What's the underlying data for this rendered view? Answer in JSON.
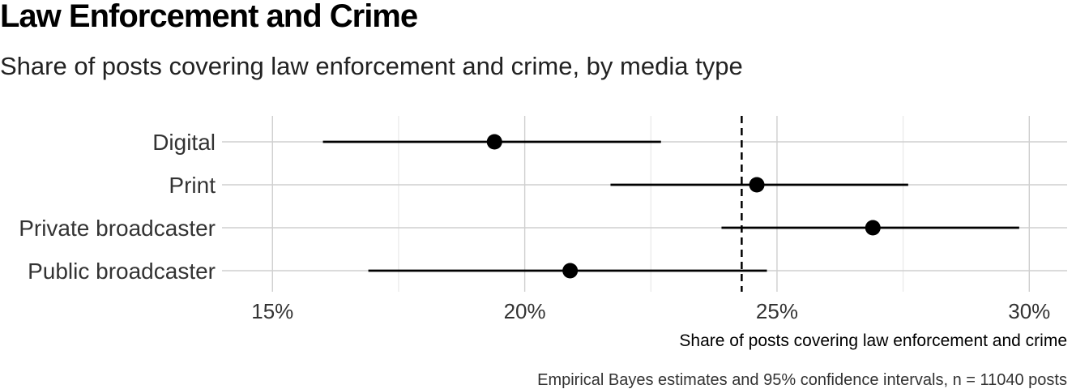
{
  "chart_data": {
    "type": "dot-and-interval",
    "title": "Law Enforcement and Crime",
    "subtitle": "Share of posts covering law enforcement and crime, by media type",
    "xlabel": "Share of posts covering law enforcement and crime",
    "ylabel": "",
    "caption": "Empirical Bayes estimates and 95% confidence intervals, n = 11040 posts",
    "xlim": [
      0.14,
      0.3075
    ],
    "xticks": [
      0.15,
      0.2,
      0.25,
      0.3
    ],
    "xtick_labels": [
      "15%",
      "20%",
      "25%",
      "30%"
    ],
    "reference_line": 0.243,
    "grid": true,
    "categories": [
      "Digital",
      "Print",
      "Private broadcaster",
      "Public broadcaster"
    ],
    "estimates": [
      0.194,
      0.246,
      0.269,
      0.209
    ],
    "ci_low": [
      0.16,
      0.217,
      0.239,
      0.169
    ],
    "ci_high": [
      0.227,
      0.276,
      0.298,
      0.248
    ]
  },
  "colors": {
    "point": "#000000",
    "grid": "#d0d0d0",
    "text": "#333333"
  }
}
